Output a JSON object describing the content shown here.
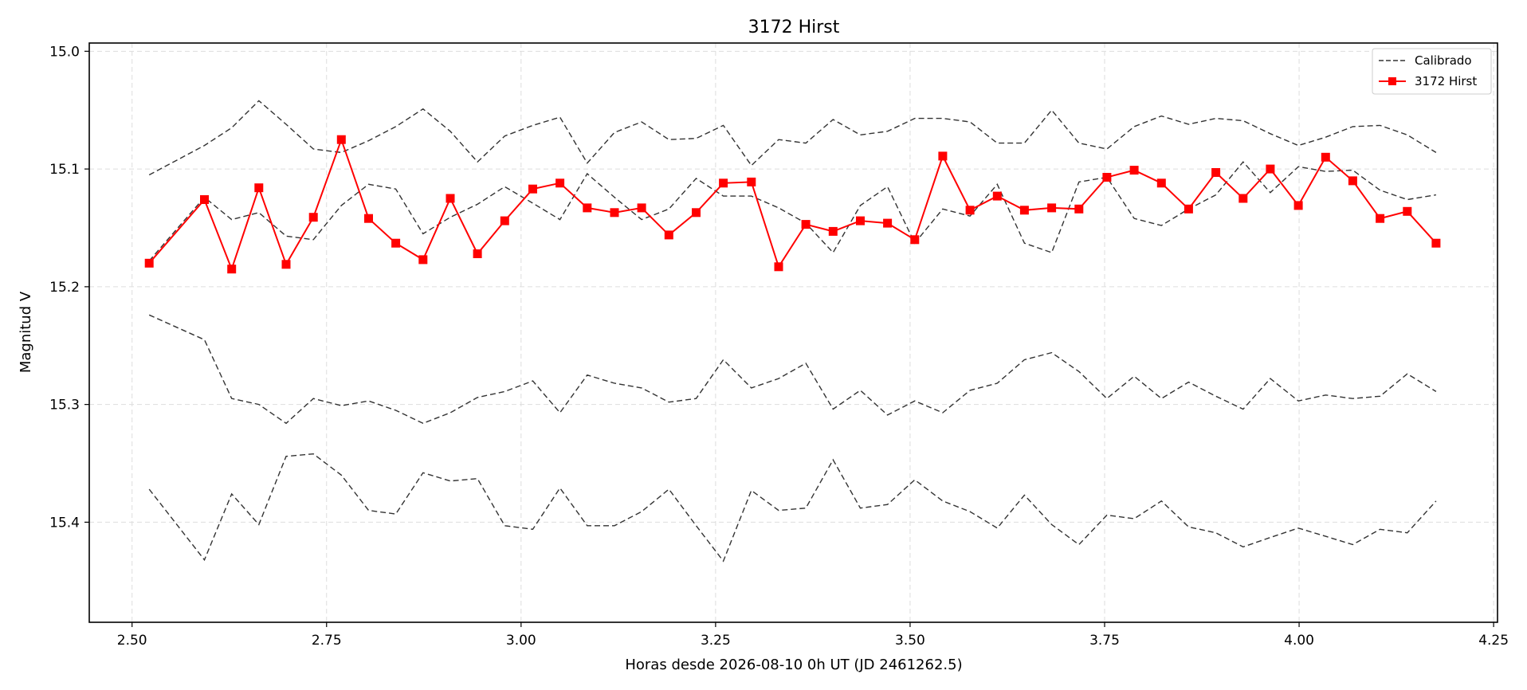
{
  "chart_data": {
    "type": "line",
    "title": "3172 Hirst",
    "xlabel": "Horas desde 2026-08-10 0h UT (JD 2461262.5)",
    "ylabel": "Magnitud V",
    "xlim": [
      2.445,
      4.255
    ],
    "ylim": [
      15.485,
      14.993
    ],
    "y_inverted": true,
    "grid": true,
    "legend_position": "top-right",
    "x_ticks": [
      "2.50",
      "2.75",
      "3.00",
      "3.25",
      "3.50",
      "3.75",
      "4.00",
      "4.25"
    ],
    "y_ticks": [
      "15.0",
      "15.1",
      "15.2",
      "15.3",
      "15.4"
    ],
    "x": [
      2.522,
      2.593,
      2.628,
      2.663,
      2.698,
      2.733,
      2.769,
      2.804,
      2.839,
      2.874,
      2.909,
      2.944,
      2.979,
      3.015,
      3.05,
      3.085,
      3.12,
      3.155,
      3.19,
      3.225,
      3.26,
      3.296,
      3.331,
      3.366,
      3.401,
      3.436,
      3.471,
      3.506,
      3.542,
      3.577,
      3.612,
      3.647,
      3.682,
      3.717,
      3.753,
      3.788,
      3.823,
      3.858,
      3.893,
      3.928,
      3.963,
      3.999,
      4.034,
      4.069,
      4.104,
      4.139,
      4.176
    ],
    "series": [
      {
        "name": "3172 Hirst",
        "color": "#ff0000",
        "marker": "square",
        "values": [
          15.18,
          15.126,
          15.185,
          15.116,
          15.181,
          15.141,
          15.075,
          15.142,
          15.163,
          15.177,
          15.125,
          15.172,
          15.144,
          15.117,
          15.112,
          15.133,
          15.137,
          15.133,
          15.156,
          15.137,
          15.112,
          15.111,
          15.183,
          15.147,
          15.153,
          15.144,
          15.146,
          15.16,
          15.089,
          15.135,
          15.123,
          15.135,
          15.133,
          15.134,
          15.107,
          15.101,
          15.112,
          15.134,
          15.103,
          15.125,
          15.1,
          15.131,
          15.09,
          15.11,
          15.142,
          15.136,
          15.163
        ]
      },
      {
        "name": "Calibrado",
        "color": "#333333",
        "line_style": "dashed",
        "values": [
          15.105,
          15.08,
          15.065,
          15.042,
          15.062,
          15.083,
          15.086,
          15.076,
          15.064,
          15.049,
          15.068,
          15.094,
          15.072,
          15.063,
          15.056,
          15.095,
          15.069,
          15.06,
          15.075,
          15.074,
          15.063,
          15.097,
          15.075,
          15.078,
          15.058,
          15.071,
          15.068,
          15.057,
          15.057,
          15.06,
          15.078,
          15.078,
          15.05,
          15.078,
          15.083,
          15.064,
          15.055,
          15.062,
          15.057,
          15.059,
          15.07,
          15.08,
          15.073,
          15.064,
          15.063,
          15.071,
          15.086
        ]
      },
      {
        "values": [
          15.178,
          15.124,
          15.143,
          15.137,
          15.157,
          15.16,
          15.131,
          15.113,
          15.117,
          15.155,
          15.141,
          15.13,
          15.115,
          15.129,
          15.143,
          15.104,
          15.124,
          15.143,
          15.134,
          15.108,
          15.123,
          15.123,
          15.133,
          15.146,
          15.171,
          15.131,
          15.115,
          15.163,
          15.134,
          15.14,
          15.113,
          15.163,
          15.171,
          15.111,
          15.107,
          15.142,
          15.148,
          15.134,
          15.122,
          15.094,
          15.12,
          15.098,
          15.102,
          15.101,
          15.118,
          15.126,
          15.122
        ]
      },
      {
        "values": [
          15.224,
          15.245,
          15.295,
          15.3,
          15.316,
          15.295,
          15.301,
          15.297,
          15.305,
          15.316,
          15.307,
          15.294,
          15.289,
          15.28,
          15.307,
          15.275,
          15.282,
          15.286,
          15.298,
          15.295,
          15.262,
          15.286,
          15.278,
          15.265,
          15.304,
          15.288,
          15.309,
          15.297,
          15.307,
          15.288,
          15.282,
          15.262,
          15.256,
          15.272,
          15.295,
          15.276,
          15.295,
          15.281,
          15.293,
          15.304,
          15.278,
          15.297,
          15.292,
          15.295,
          15.293,
          15.274,
          15.289
        ]
      },
      {
        "values": [
          15.372,
          15.432,
          15.376,
          15.402,
          15.344,
          15.342,
          15.36,
          15.39,
          15.393,
          15.358,
          15.365,
          15.363,
          15.403,
          15.406,
          15.371,
          15.403,
          15.403,
          15.391,
          15.372,
          15.403,
          15.433,
          15.373,
          15.39,
          15.388,
          15.347,
          15.388,
          15.385,
          15.364,
          15.382,
          15.391,
          15.405,
          15.377,
          15.402,
          15.419,
          15.394,
          15.397,
          15.382,
          15.404,
          15.409,
          15.421,
          15.413,
          15.405,
          15.412,
          15.419,
          15.406,
          15.409,
          15.382
        ]
      }
    ]
  }
}
